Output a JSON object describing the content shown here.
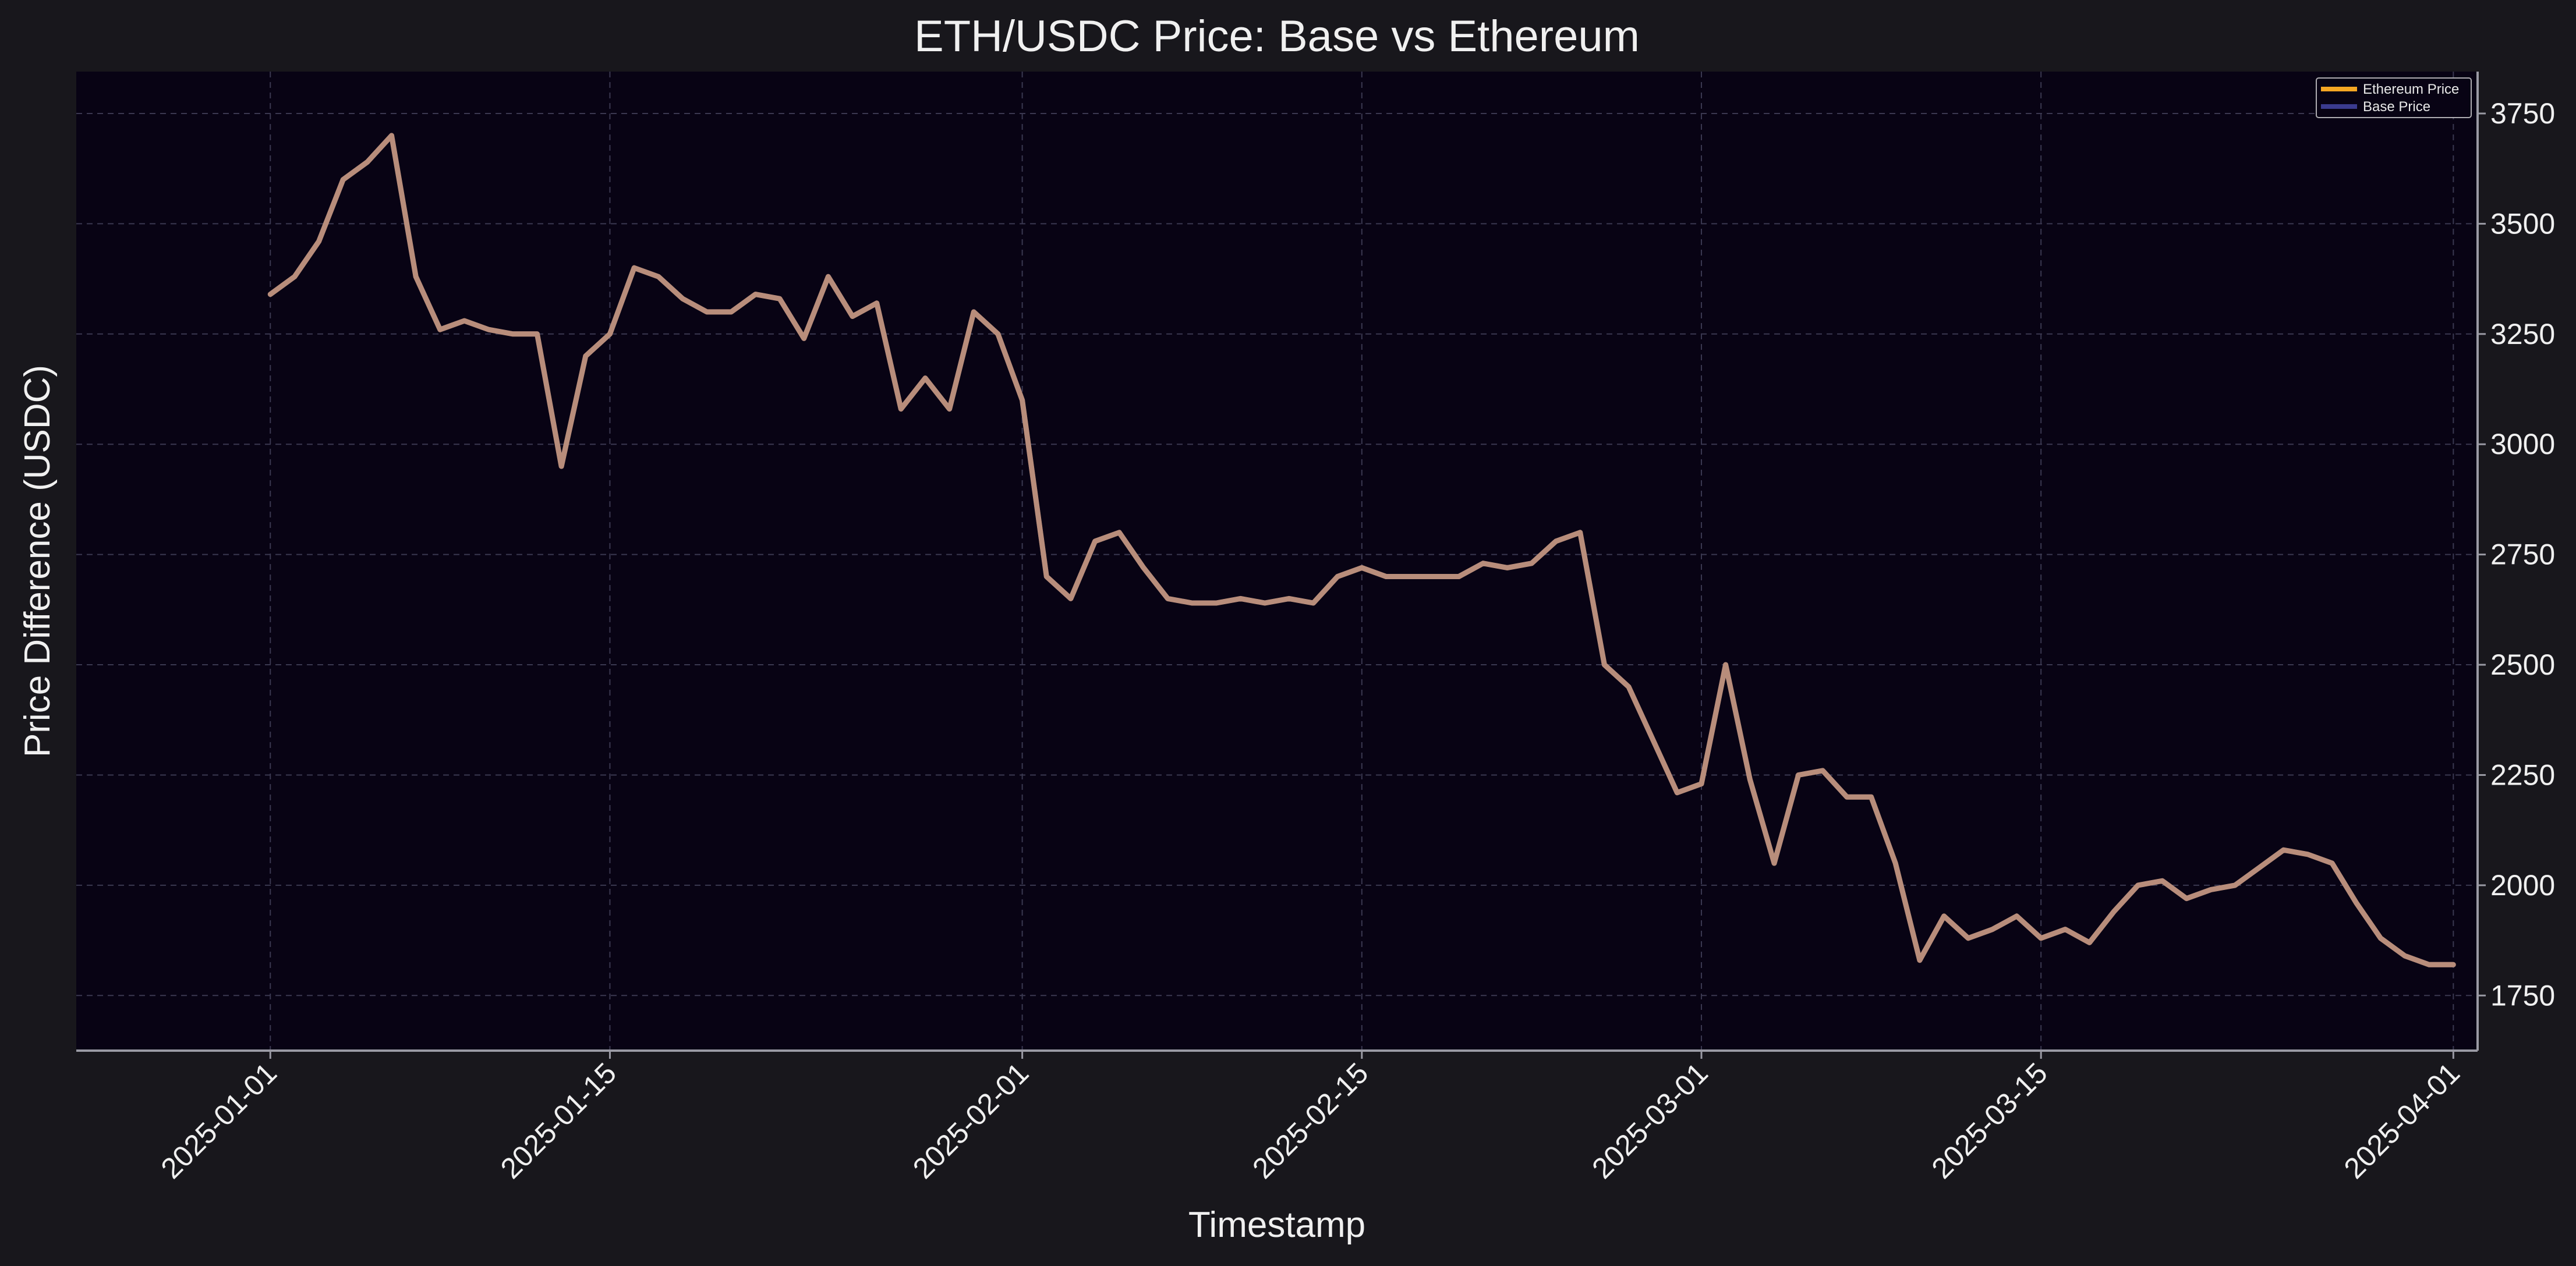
{
  "colors": {
    "figure_bg": "#18171c",
    "plot_bg": "#080314",
    "grid": "#3a3850",
    "axis": "#9a9aa4",
    "text": "#f0f0f0",
    "ethereum_series": "#f5a623",
    "base_series": "#3b3b8f",
    "overlap_line": "#b88d7c"
  },
  "chart_data": {
    "type": "line",
    "title": "ETH/USDC Price: Base vs Ethereum",
    "xlabel": "Timestamp",
    "ylabel": "Price Difference (USDC)",
    "xlim": [
      "2024-12-24",
      "2025-04-02"
    ],
    "ylim": [
      1625,
      3845
    ],
    "y_axis_side": "right",
    "grid": true,
    "legend_position": "top-right",
    "x_ticks": [
      "2025-01-01",
      "2025-01-15",
      "2025-02-01",
      "2025-02-15",
      "2025-03-01",
      "2025-03-15",
      "2025-04-01"
    ],
    "y_ticks": [
      1750,
      2000,
      2250,
      2500,
      2750,
      3000,
      3250,
      3500,
      3750
    ],
    "series": [
      {
        "name": "Ethereum Price",
        "color": "#f5a623",
        "x": [
          "2025-01-01",
          "2025-01-02",
          "2025-01-03",
          "2025-01-04",
          "2025-01-05",
          "2025-01-06",
          "2025-01-07",
          "2025-01-08",
          "2025-01-09",
          "2025-01-10",
          "2025-01-11",
          "2025-01-12",
          "2025-01-13",
          "2025-01-14",
          "2025-01-15",
          "2025-01-16",
          "2025-01-17",
          "2025-01-18",
          "2025-01-19",
          "2025-01-20",
          "2025-01-21",
          "2025-01-22",
          "2025-01-23",
          "2025-01-24",
          "2025-01-25",
          "2025-01-26",
          "2025-01-27",
          "2025-01-28",
          "2025-01-29",
          "2025-01-30",
          "2025-01-31",
          "2025-02-01",
          "2025-02-02",
          "2025-02-03",
          "2025-02-04",
          "2025-02-05",
          "2025-02-06",
          "2025-02-07",
          "2025-02-08",
          "2025-02-09",
          "2025-02-10",
          "2025-02-11",
          "2025-02-12",
          "2025-02-13",
          "2025-02-14",
          "2025-02-15",
          "2025-02-16",
          "2025-02-17",
          "2025-02-18",
          "2025-02-19",
          "2025-02-20",
          "2025-02-21",
          "2025-02-22",
          "2025-02-23",
          "2025-02-24",
          "2025-02-25",
          "2025-02-26",
          "2025-02-27",
          "2025-02-28",
          "2025-03-01",
          "2025-03-02",
          "2025-03-03",
          "2025-03-04",
          "2025-03-05",
          "2025-03-06",
          "2025-03-07",
          "2025-03-08",
          "2025-03-09",
          "2025-03-10",
          "2025-03-11",
          "2025-03-12",
          "2025-03-13",
          "2025-03-14",
          "2025-03-15",
          "2025-03-16",
          "2025-03-17",
          "2025-03-18",
          "2025-03-19",
          "2025-03-20",
          "2025-03-21",
          "2025-03-22",
          "2025-03-23",
          "2025-03-24",
          "2025-03-25",
          "2025-03-26",
          "2025-03-27",
          "2025-03-28",
          "2025-03-29",
          "2025-03-30",
          "2025-03-31",
          "2025-04-01"
        ],
        "values": [
          3340,
          3380,
          3460,
          3600,
          3640,
          3700,
          3380,
          3260,
          3280,
          3260,
          3250,
          3250,
          2950,
          3200,
          3250,
          3400,
          3380,
          3330,
          3300,
          3300,
          3340,
          3330,
          3240,
          3380,
          3290,
          3320,
          3080,
          3150,
          3080,
          3300,
          3250,
          3100,
          2700,
          2650,
          2780,
          2800,
          2720,
          2650,
          2640,
          2640,
          2650,
          2640,
          2650,
          2640,
          2700,
          2720,
          2700,
          2700,
          2700,
          2700,
          2730,
          2720,
          2730,
          2780,
          2800,
          2500,
          2450,
          2330,
          2210,
          2230,
          2500,
          2240,
          2050,
          2250,
          2260,
          2200,
          2200,
          2050,
          1830,
          1930,
          1880,
          1900,
          1930,
          1880,
          1900,
          1870,
          1940,
          2000,
          2010,
          1970,
          1990,
          2000,
          2040,
          2080,
          2070,
          2050,
          1960,
          1880,
          1840,
          1820,
          1820
        ]
      },
      {
        "name": "Base Price",
        "color": "#3b3b8f",
        "x": [
          "2025-01-01",
          "2025-01-02",
          "2025-01-03",
          "2025-01-04",
          "2025-01-05",
          "2025-01-06",
          "2025-01-07",
          "2025-01-08",
          "2025-01-09",
          "2025-01-10",
          "2025-01-11",
          "2025-01-12",
          "2025-01-13",
          "2025-01-14",
          "2025-01-15",
          "2025-01-16",
          "2025-01-17",
          "2025-01-18",
          "2025-01-19",
          "2025-01-20",
          "2025-01-21",
          "2025-01-22",
          "2025-01-23",
          "2025-01-24",
          "2025-01-25",
          "2025-01-26",
          "2025-01-27",
          "2025-01-28",
          "2025-01-29",
          "2025-01-30",
          "2025-01-31",
          "2025-02-01",
          "2025-02-02",
          "2025-02-03",
          "2025-02-04",
          "2025-02-05",
          "2025-02-06",
          "2025-02-07",
          "2025-02-08",
          "2025-02-09",
          "2025-02-10",
          "2025-02-11",
          "2025-02-12",
          "2025-02-13",
          "2025-02-14",
          "2025-02-15",
          "2025-02-16",
          "2025-02-17",
          "2025-02-18",
          "2025-02-19",
          "2025-02-20",
          "2025-02-21",
          "2025-02-22",
          "2025-02-23",
          "2025-02-24",
          "2025-02-25",
          "2025-02-26",
          "2025-02-27",
          "2025-02-28",
          "2025-03-01",
          "2025-03-02",
          "2025-03-03",
          "2025-03-04",
          "2025-03-05",
          "2025-03-06",
          "2025-03-07",
          "2025-03-08",
          "2025-03-09",
          "2025-03-10",
          "2025-03-11",
          "2025-03-12",
          "2025-03-13",
          "2025-03-14",
          "2025-03-15",
          "2025-03-16",
          "2025-03-17",
          "2025-03-18",
          "2025-03-19",
          "2025-03-20",
          "2025-03-21",
          "2025-03-22",
          "2025-03-23",
          "2025-03-24",
          "2025-03-25",
          "2025-03-26",
          "2025-03-27",
          "2025-03-28",
          "2025-03-29",
          "2025-03-30",
          "2025-03-31",
          "2025-04-01"
        ],
        "values": [
          3340,
          3380,
          3460,
          3600,
          3640,
          3700,
          3380,
          3260,
          3280,
          3260,
          3250,
          3250,
          2950,
          3200,
          3250,
          3400,
          3380,
          3330,
          3300,
          3300,
          3340,
          3330,
          3240,
          3380,
          3290,
          3320,
          3080,
          3150,
          3080,
          3300,
          3250,
          3100,
          2700,
          2650,
          2780,
          2800,
          2720,
          2650,
          2640,
          2640,
          2650,
          2640,
          2650,
          2640,
          2700,
          2720,
          2700,
          2700,
          2700,
          2700,
          2730,
          2720,
          2730,
          2780,
          2800,
          2500,
          2450,
          2330,
          2210,
          2230,
          2500,
          2240,
          2050,
          2250,
          2260,
          2200,
          2200,
          2050,
          1830,
          1930,
          1880,
          1900,
          1930,
          1880,
          1900,
          1870,
          1940,
          2000,
          2010,
          1970,
          1990,
          2000,
          2040,
          2080,
          2070,
          2050,
          1960,
          1880,
          1840,
          1820,
          1820
        ]
      }
    ]
  }
}
